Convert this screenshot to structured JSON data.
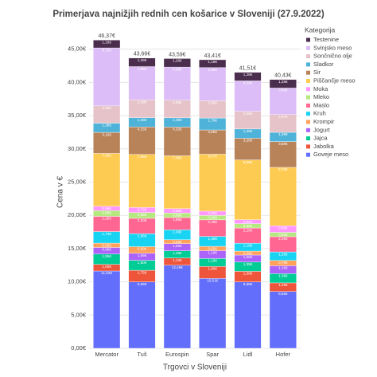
{
  "chart_data": {
    "type": "bar",
    "stacked": true,
    "title": "Primerjava najnižjih rednih cen košarice v Sloveniji (27.9.2022)",
    "x_label": "Trgovci v Sloveniji",
    "y_label": "Cena v €",
    "legend_title": "Kategorija",
    "legend_position": "right",
    "categories": [
      "Mercator",
      "Tuš",
      "Eurospin",
      "Spar",
      "Lidl",
      "Hofer"
    ],
    "ylim": [
      0,
      47
    ],
    "yticks": [
      {
        "value": 0,
        "label": "0,00€"
      },
      {
        "value": 5,
        "label": "5,00€"
      },
      {
        "value": 10,
        "label": "10,00€"
      },
      {
        "value": 15,
        "label": "15,00€"
      },
      {
        "value": 20,
        "label": "20,00€"
      },
      {
        "value": 25,
        "label": "25,00€"
      },
      {
        "value": 30,
        "label": "30,00€"
      },
      {
        "value": 35,
        "label": "35,00€"
      },
      {
        "value": 40,
        "label": "40,00€"
      },
      {
        "value": 45,
        "label": "45,00€"
      }
    ],
    "grid": true,
    "totals": [
      46.37,
      43.66,
      43.59,
      43.41,
      41.51,
      40.43
    ],
    "total_labels": [
      "46,37€",
      "43,66€",
      "43,59€",
      "43,41€",
      "41,51€",
      "40,43€"
    ],
    "series": [
      {
        "name": "Goveje meso",
        "color": "#636efa",
        "values": [
          11.63,
          9.99,
          12.49,
          10.51,
          9.99,
          8.55
        ],
        "value_labels": [
          "11,63€",
          "9,99€",
          "12,49€",
          "10,51€",
          "9,99€",
          "8,55€"
        ]
      },
      {
        "name": "Jabolka",
        "color": "#ef553b",
        "values": [
          1.0,
          1.75,
          1.1,
          1.8,
          1.59,
          1.29
        ],
        "value_labels": [
          "1,00€",
          "1,75€",
          "1,10€",
          "1,80€",
          "1,59€",
          "1,29€"
        ]
      },
      {
        "name": "Jajca",
        "color": "#00cc96",
        "values": [
          1.55,
          1.5,
          1.09,
          1.19,
          1.39,
          1.39
        ],
        "value_labels": [
          "1,55€",
          "1,50€",
          "1,09€",
          "1,19€",
          "1,39€",
          "1,39€"
        ]
      },
      {
        "name": "Jogurt",
        "color": "#ab63fa",
        "values": [
          0.99,
          1.06,
          1.06,
          1.19,
          1.06,
          1.19
        ],
        "value_labels": [
          "0,99€",
          "1,06€",
          "1,06€",
          "1,19€",
          "1,06€",
          "1,19€"
        ]
      },
      {
        "name": "Krompir",
        "color": "#ffa15a",
        "values": [
          0.65,
          0.99,
          0.59,
          0.65,
          0.59,
          0.79
        ],
        "value_labels": [
          "0,65€",
          "0,99€",
          "0,59€",
          "0,65€",
          "0,59€",
          "0,79€"
        ]
      },
      {
        "name": "Kruh",
        "color": "#19d3f3",
        "values": [
          1.74,
          1.96,
          1.49,
          1.49,
          1.19,
          1.29
        ],
        "value_labels": [
          "1,74€",
          "1,96€",
          "1,49€",
          "1,49€",
          "1,19€",
          "1,29€"
        ]
      },
      {
        "name": "Maslo",
        "color": "#ff6692",
        "values": [
          2.29,
          2.3,
          1.85,
          2.49,
          2.29,
          2.29
        ],
        "value_labels": [
          "2,29€",
          "2,30€",
          "1,85€",
          "2,49€",
          "2,29€",
          "2,29€"
        ]
      },
      {
        "name": "Mleko",
        "color": "#b6e880",
        "values": [
          0.86,
          0.86,
          0.68,
          0.66,
          0.65,
          0.65
        ],
        "value_labels": [
          "0,86€",
          "0,86€",
          "0,68€",
          "0,66€",
          "0,65€",
          "0,65€"
        ]
      },
      {
        "name": "Moka",
        "color": "#ff97ff",
        "values": [
          0.65,
          0.79,
          0.65,
          0.65,
          0.6,
          0.99
        ],
        "value_labels": [
          "0,65€",
          "0,79€",
          "0,65€",
          "0,65€",
          "0,60€",
          "0,99€"
        ]
      },
      {
        "name": "Piščančje meso",
        "color": "#fecb52",
        "values": [
          7.96,
          7.96,
          7.96,
          8.57,
          8.99,
          8.79
        ],
        "value_labels": [
          "7,96€",
          "7,96€",
          "7,96€",
          "8,57€",
          "8,99€",
          "8,79€"
        ]
      },
      {
        "name": "Sir",
        "color": "#b9835a",
        "values": [
          3.16,
          4.15,
          4.32,
          3.65,
          3.26,
          3.88
        ],
        "value_labels": [
          "3,16€",
          "4,15€",
          "4,32€",
          "3,65€",
          "3,26€",
          "3,88€"
        ]
      },
      {
        "name": "Sladkor",
        "color": "#4fb3d9",
        "values": [
          1.39,
          1.39,
          1.39,
          1.79,
          1.39,
          1.39
        ],
        "value_labels": [
          "1,39€",
          "1,39€",
          "1,39€",
          "1,79€",
          "1,39€",
          "1,39€"
        ]
      },
      {
        "name": "Sončnično olje",
        "color": "#e6c3c8",
        "values": [
          2.6,
          2.69,
          2.65,
          2.6,
          2.65,
          2.67
        ],
        "value_labels": [
          "2,60€",
          "2,69€",
          "2,65€",
          "2,60€",
          "2,65€",
          "2,67€"
        ]
      },
      {
        "name": "Svinjsko meso",
        "color": "#dcbdf7",
        "values": [
          8.72,
          4.99,
          4.99,
          4.99,
          4.59,
          3.99
        ],
        "value_labels": [
          "8,72€",
          "4,99€",
          "4,99€",
          "4,99€",
          "4,59€",
          "3,99€"
        ]
      },
      {
        "name": "Testenine",
        "color": "#4b2e4d",
        "values": [
          1.18,
          1.28,
          1.28,
          1.18,
          1.28,
          1.28
        ],
        "value_labels": [
          "1,18€",
          "1,28€",
          "1,28€",
          "1,18€",
          "1,28€",
          "1,28€"
        ]
      }
    ]
  }
}
